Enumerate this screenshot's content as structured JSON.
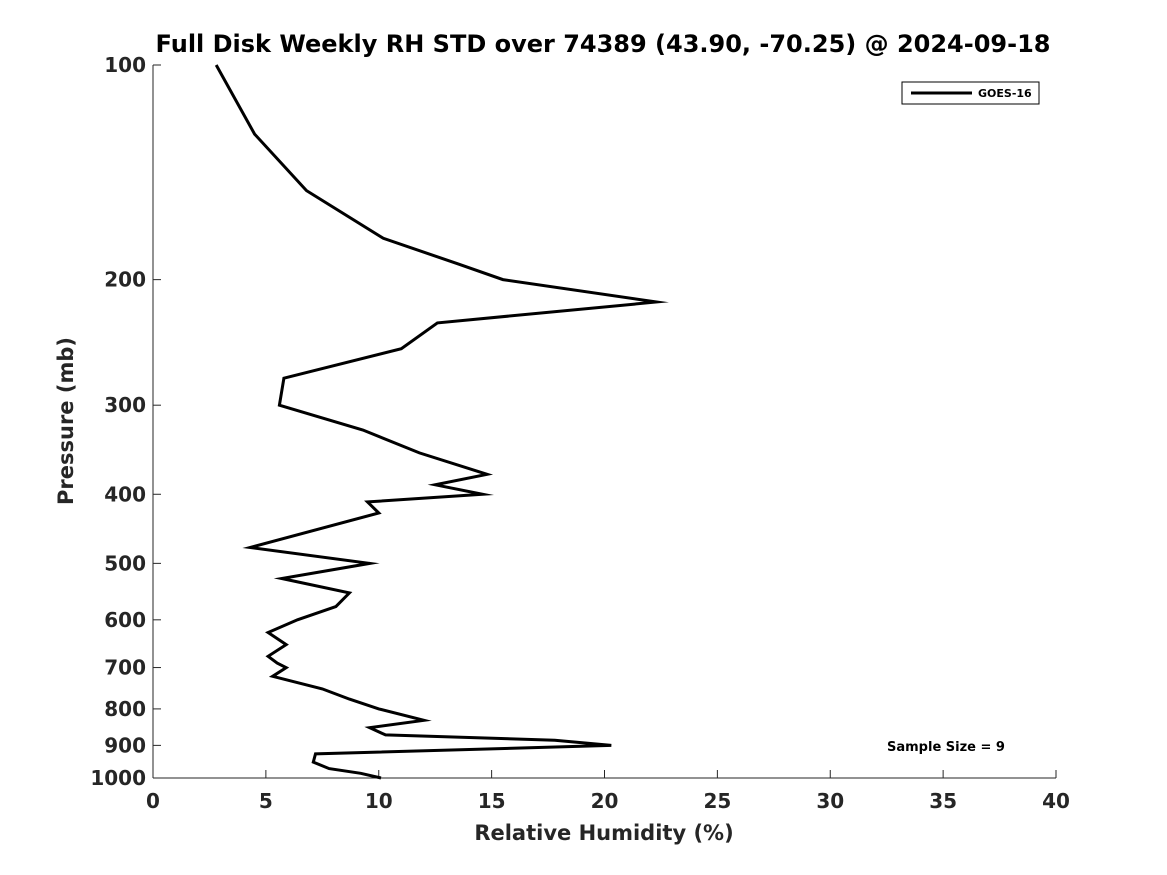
{
  "chart_data": {
    "type": "line",
    "title": "Full Disk Weekly RH STD over 74389 (43.90, -70.25) @ 2024-09-18",
    "xlabel": "Relative Humidity (%)",
    "ylabel": "Pressure (mb)",
    "xlim": [
      0,
      40
    ],
    "ylim": [
      1000,
      100
    ],
    "y_scale": "log",
    "x_ticks": [
      0,
      5,
      10,
      15,
      20,
      25,
      30,
      35,
      40
    ],
    "x_tick_labels": [
      "0",
      "5",
      "10",
      "15",
      "20",
      "25",
      "30",
      "35",
      "40"
    ],
    "y_ticks": [
      100,
      200,
      300,
      400,
      500,
      600,
      700,
      800,
      900,
      1000
    ],
    "y_tick_labels": [
      "100",
      "200",
      "300",
      "400",
      "500",
      "600",
      "700",
      "800",
      "900",
      "1000"
    ],
    "grid": false,
    "legend": {
      "position": "top-right",
      "entries": [
        "GOES-16"
      ]
    },
    "annotation": "Sample Size = 9",
    "series": [
      {
        "name": "GOES-16",
        "color": "#000000",
        "points": [
          [
            2.8,
            100
          ],
          [
            4.5,
            125
          ],
          [
            6.8,
            150
          ],
          [
            10.2,
            175
          ],
          [
            13.5,
            190
          ],
          [
            15.5,
            200
          ],
          [
            22.3,
            215
          ],
          [
            12.6,
            230
          ],
          [
            11.0,
            250
          ],
          [
            5.8,
            275
          ],
          [
            5.6,
            300
          ],
          [
            9.3,
            325
          ],
          [
            11.8,
            350
          ],
          [
            14.8,
            375
          ],
          [
            12.5,
            388
          ],
          [
            14.6,
            400
          ],
          [
            9.5,
            410
          ],
          [
            10.0,
            425
          ],
          [
            4.3,
            475
          ],
          [
            9.6,
            500
          ],
          [
            5.7,
            525
          ],
          [
            8.7,
            550
          ],
          [
            8.1,
            575
          ],
          [
            6.4,
            600
          ],
          [
            5.1,
            625
          ],
          [
            5.9,
            650
          ],
          [
            5.1,
            675
          ],
          [
            5.5,
            690
          ],
          [
            5.9,
            700
          ],
          [
            5.3,
            720
          ],
          [
            7.5,
            750
          ],
          [
            8.7,
            775
          ],
          [
            10.0,
            800
          ],
          [
            12.0,
            830
          ],
          [
            9.6,
            850
          ],
          [
            10.3,
            870
          ],
          [
            17.8,
            885
          ],
          [
            20.3,
            900
          ],
          [
            7.2,
            925
          ],
          [
            7.1,
            950
          ],
          [
            7.8,
            970
          ],
          [
            9.2,
            985
          ],
          [
            10.1,
            1000
          ]
        ]
      }
    ]
  }
}
